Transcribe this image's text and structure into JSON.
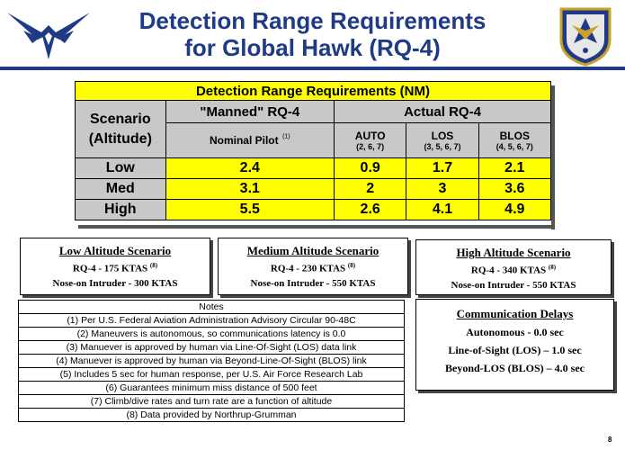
{
  "slide": {
    "title_line1": "Detection Range Requirements",
    "title_line2": "for Global Hawk (RQ-4)",
    "page_number": "8"
  },
  "table": {
    "header": "Detection Range Requirements (NM)",
    "scenario_line1": "Scenario",
    "scenario_line2": "(Altitude)",
    "manned_header": "\"Manned\" RQ-4",
    "actual_header": "Actual RQ-4",
    "nominal_pilot": "Nominal Pilot",
    "nominal_pilot_note": "(1)",
    "columns": [
      {
        "label": "AUTO",
        "notes": "(2, 6, 7)"
      },
      {
        "label": "LOS",
        "notes": "(3, 5, 6, 7)"
      },
      {
        "label": "BLOS",
        "notes": "(4, 5, 6, 7)"
      }
    ],
    "rows": [
      {
        "scenario": "Low",
        "pilot": "2.4",
        "auto": "0.9",
        "los": "1.7",
        "blos": "2.1"
      },
      {
        "scenario": "Med",
        "pilot": "3.1",
        "auto": "2",
        "los": "3",
        "blos": "3.6"
      },
      {
        "scenario": "High",
        "pilot": "5.5",
        "auto": "2.6",
        "los": "4.1",
        "blos": "4.9"
      }
    ]
  },
  "scenarios": [
    {
      "title": "Low Altitude Scenario",
      "line1": "RQ-4 - 175 KTAS",
      "line1_note": "(8)",
      "line2": "Nose-on Intruder - 300 KTAS"
    },
    {
      "title": "Medium Altitude Scenario",
      "line1": "RQ-4 - 230 KTAS",
      "line1_note": "(8)",
      "line2": "Nose-on Intruder - 550 KTAS"
    },
    {
      "title": "High Altitude Scenario",
      "line1": "RQ-4 - 340 KTAS",
      "line1_note": "(8)",
      "line2": "Nose-on Intruder - 550 KTAS"
    }
  ],
  "notes": {
    "header": "Notes",
    "items": [
      "(1) Per U.S. Federal Aviation Administration Advisory Circular 90-48C",
      "(2) Maneuvers is autonomous, so communications latency is 0.0",
      "(3) Manuever is approved by human via Line-Of-Sight (LOS) data link",
      "(4) Manuever is approved by human via Beyond-Line-Of-Sight (BLOS) link",
      "(5) Includes 5 sec for human response, per U.S. Air Force Research Lab",
      "(6) Guarantees minimum miss distance of 500 feet",
      "(7) Climb/dive rates and turn rate are a function of altitude",
      "(8) Data provided by Northrup-Grumman"
    ]
  },
  "communication": {
    "title": "Communication Delays",
    "lines": [
      "Autonomous - 0.0 sec",
      "Line-of-Sight (LOS) – 1.0 sec",
      "Beyond-LOS (BLOS) – 4.0 sec"
    ]
  },
  "colors": {
    "title_blue": "#1f3a86",
    "highlight_yellow": "#ffff00",
    "header_gray": "#c8c8c8"
  },
  "icons": {
    "left_logo": "air-force-symbol-icon",
    "right_logo": "command-seal-icon"
  }
}
